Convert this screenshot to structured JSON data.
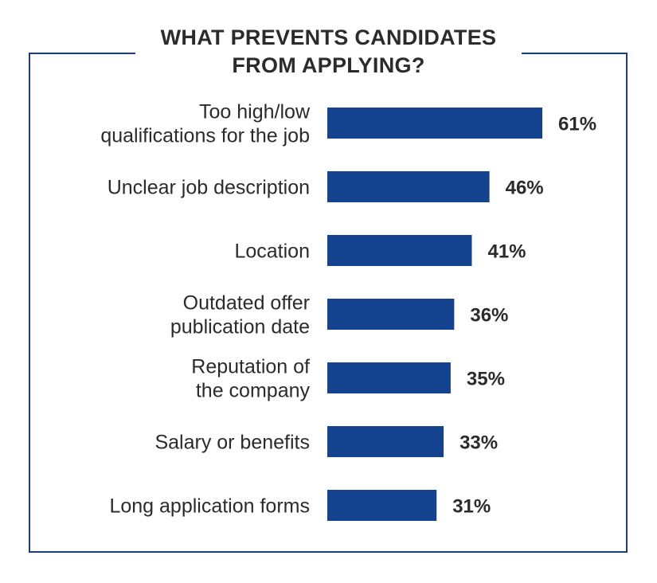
{
  "chart_data": {
    "type": "bar",
    "orientation": "horizontal",
    "title_lines": [
      "WHAT PREVENTS CANDIDATES",
      "FROM APPLYING?"
    ],
    "categories": [
      [
        "Too high/low",
        "qualifications for the job"
      ],
      [
        "Unclear job description"
      ],
      [
        "Location"
      ],
      [
        "Outdated offer",
        "publication date"
      ],
      [
        "Reputation of",
        "the company"
      ],
      [
        "Salary or benefits"
      ],
      [
        "Long application forms"
      ]
    ],
    "values": [
      61,
      46,
      41,
      36,
      35,
      33,
      31
    ],
    "value_labels": [
      "61%",
      "46%",
      "41%",
      "36%",
      "35%",
      "33%",
      "31%"
    ],
    "unit": "%",
    "xlim": [
      0,
      61
    ],
    "grid": false,
    "legend": "none",
    "bar_color": "#13438f",
    "frame_color": "#1a3e7c"
  }
}
